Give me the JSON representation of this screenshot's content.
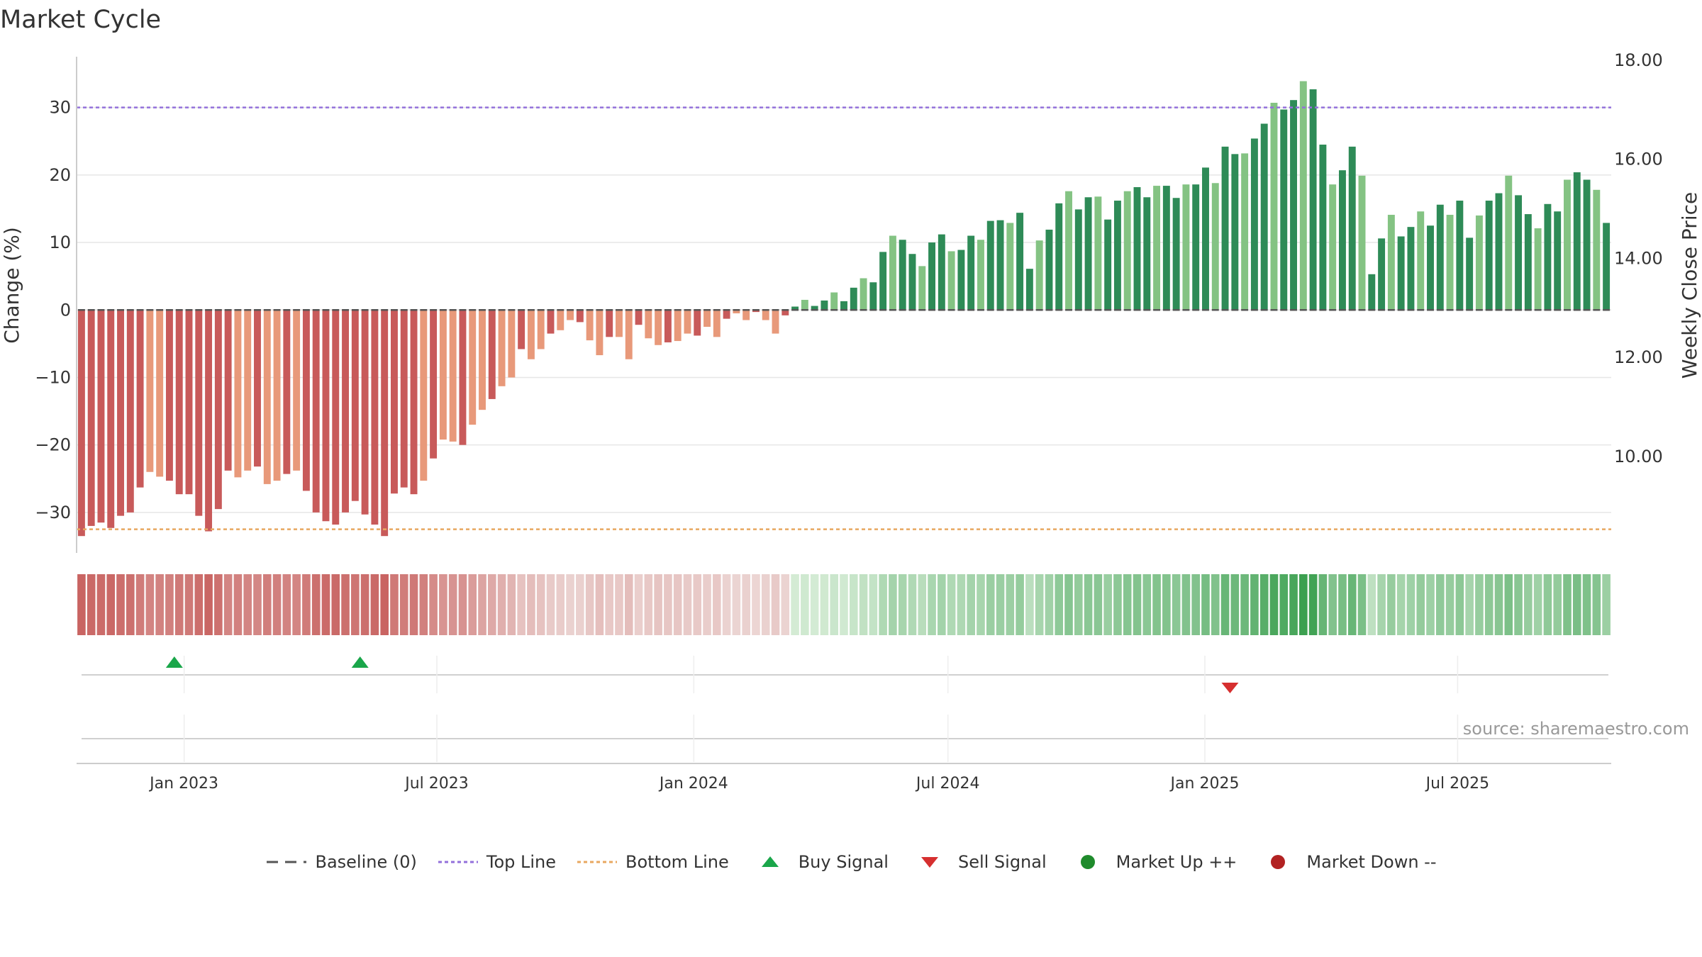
{
  "title": "Market Cycle",
  "source": "source: sharemaestro.com",
  "colors": {
    "neg_dark": "#c85a5a",
    "neg_light": "#e8997a",
    "pos_dark": "#2e8b57",
    "pos_light": "#84c383",
    "top_line": "#9370db",
    "bottom_line": "#e8a860",
    "baseline": "#555555",
    "buy": "#1aa64a",
    "sell": "#d62f2f",
    "market_up": "#1f8b2c",
    "market_down": "#b22222"
  },
  "legend": [
    {
      "key": "baseline",
      "label": "Baseline (0)",
      "icon": "dash-line"
    },
    {
      "key": "top_line",
      "label": "Top Line",
      "icon": "dotted-line"
    },
    {
      "key": "bottom_line",
      "label": "Bottom Line",
      "icon": "dotted-line"
    },
    {
      "key": "buy",
      "label": "Buy Signal",
      "icon": "triangle-up"
    },
    {
      "key": "sell",
      "label": "Sell Signal",
      "icon": "triangle-down"
    },
    {
      "key": "market_up",
      "label": "Market Up ++",
      "icon": "circle"
    },
    {
      "key": "market_down",
      "label": "Market Down --",
      "icon": "circle"
    }
  ],
  "chart_data": {
    "type": "bar",
    "title": "Market Cycle",
    "ylabel": "Change (%)",
    "y2label": "Weekly Close Price",
    "ylim": [
      -36,
      37
    ],
    "yticks": [
      30,
      20,
      10,
      0,
      -10,
      -20,
      -30
    ],
    "ytick_labels": [
      "30",
      "20",
      "10",
      "0",
      "−10",
      "−20",
      "−30"
    ],
    "y2lim": [
      8.05,
      18.0
    ],
    "y2ticks": [
      18.0,
      16.0,
      14.0,
      12.0,
      10.0
    ],
    "y2tick_labels": [
      "18.00",
      "16.00",
      "14.00",
      "12.00",
      "10.00"
    ],
    "top_line": 30,
    "bottom_line": -32.5,
    "baseline": 0,
    "x_range": [
      "2022-10-16",
      "2025-10-19"
    ],
    "xticks": [
      "2023-01-01",
      "2023-07-01",
      "2024-01-01",
      "2024-07-01",
      "2025-01-01",
      "2025-07-01"
    ],
    "xtick_labels": [
      "Jan 2023",
      "Jul 2023",
      "Jan 2024",
      "Jul 2024",
      "Jan 2025",
      "Jul 2025"
    ],
    "start_date": "2022-10-16",
    "interval_days": 7,
    "values": [
      -33.5,
      -32,
      -31.5,
      -32.3,
      -30.5,
      -30,
      -26.3,
      -24,
      -24.7,
      -25.3,
      -27.3,
      -27.3,
      -30.5,
      -32.8,
      -29.5,
      -23.8,
      -24.8,
      -23.8,
      -23.2,
      -25.8,
      -25.3,
      -24.3,
      -23.8,
      -26.8,
      -30,
      -31.3,
      -31.8,
      -30,
      -28.3,
      -30.3,
      -31.8,
      -33.5,
      -27.2,
      -26.3,
      -27.3,
      -25.3,
      -22,
      -19.2,
      -19.5,
      -20,
      -17,
      -14.8,
      -13.2,
      -11.3,
      -10,
      -5.8,
      -7.3,
      -5.8,
      -3.5,
      -3,
      -1.5,
      -1.8,
      -4.5,
      -6.7,
      -4,
      -4,
      -7.3,
      -2.2,
      -4.2,
      -5.2,
      -4.8,
      -4.6,
      -3.5,
      -3.8,
      -2.5,
      -4,
      -1.3,
      -0.5,
      -1.5,
      -0.3,
      -1.5,
      -3.5,
      -0.8,
      0.5,
      1.5,
      0.6,
      1.4,
      2.6,
      1.3,
      3.3,
      4.7,
      4.1,
      8.6,
      11,
      10.4,
      8.3,
      6.5,
      10,
      11.2,
      8.7,
      8.9,
      11,
      10.4,
      13.2,
      13.3,
      12.9,
      14.4,
      6.1,
      10.3,
      11.9,
      15.8,
      17.6,
      14.9,
      16.7,
      16.8,
      13.4,
      16.2,
      17.6,
      18.2,
      16.7,
      18.4,
      18.4,
      16.6,
      18.6,
      18.6,
      21.1,
      18.8,
      24.2,
      23.1,
      23.2,
      25.4,
      27.6,
      30.7,
      29.7,
      31.1,
      33.9,
      32.7,
      24.5,
      18.6,
      20.7,
      24.2,
      19.9,
      5.3,
      10.6,
      14.1,
      10.9,
      12.3,
      14.6,
      12.5,
      15.6,
      14.1,
      16.2,
      10.7,
      14,
      16.2,
      17.3,
      19.9,
      17,
      14.2,
      12.1,
      15.7,
      14.6,
      19.3,
      20.4,
      19.3,
      17.8,
      12.9
    ],
    "buy_signals": [
      "2022-12-25",
      "2023-05-07"
    ],
    "sell_signals": [
      "2025-01-19"
    ],
    "market_up_points": [],
    "market_down_points": [],
    "legend_position": "bottom-center",
    "grid": true
  }
}
